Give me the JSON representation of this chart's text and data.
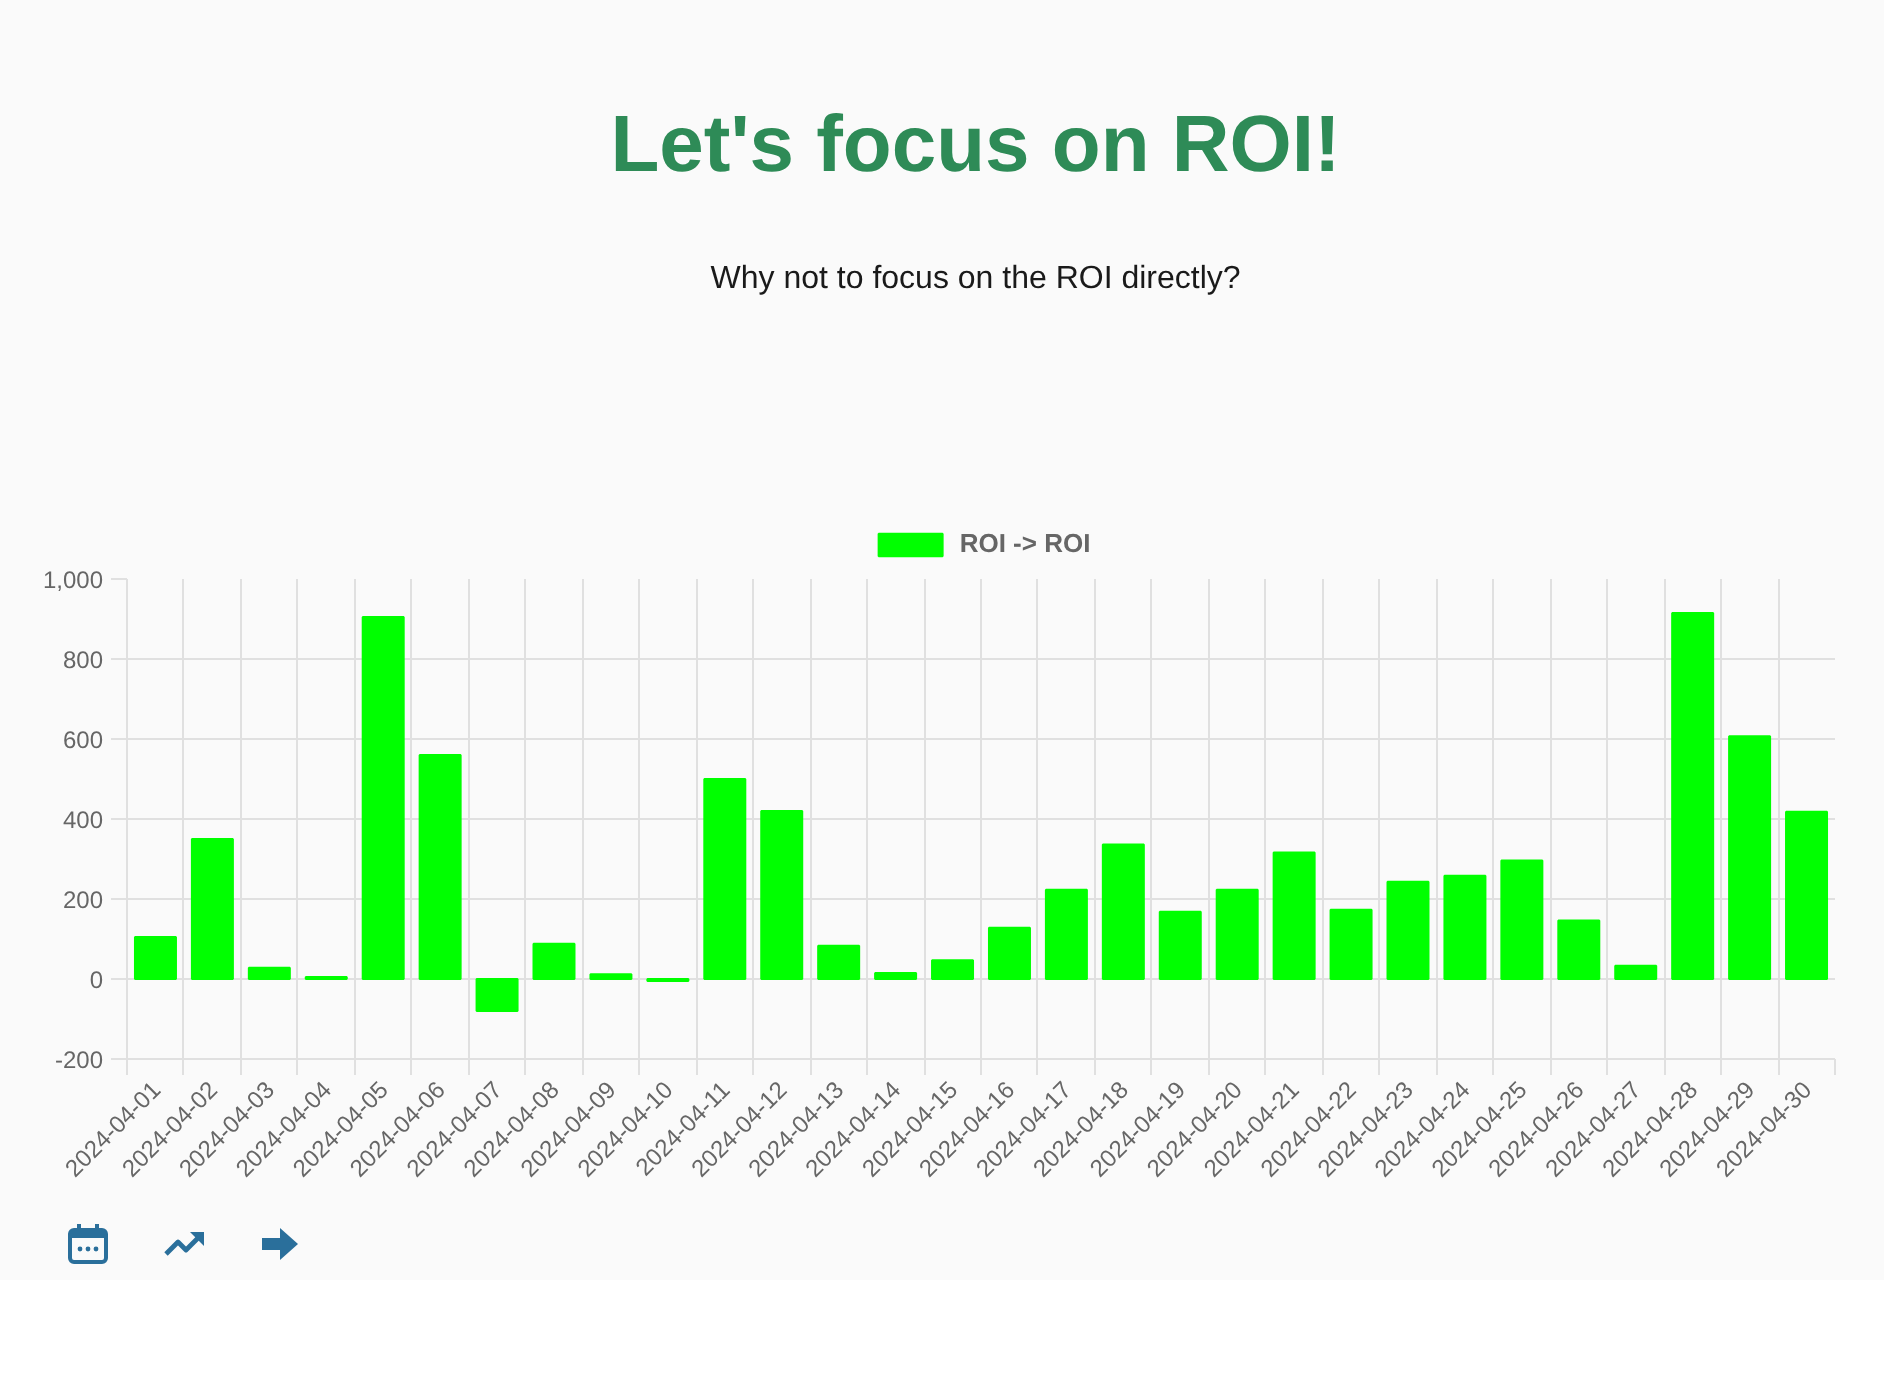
{
  "chart_data": {
    "type": "bar",
    "title": "Let's focus on ROI!",
    "subtitle": "Why not to focus on the ROI directly?",
    "categories": [
      "2024-04-01",
      "2024-04-02",
      "2024-04-03",
      "2024-04-04",
      "2024-04-05",
      "2024-04-06",
      "2024-04-07",
      "2024-04-08",
      "2024-04-09",
      "2024-04-10",
      "2024-04-11",
      "2024-04-12",
      "2024-04-13",
      "2024-04-14",
      "2024-04-15",
      "2024-04-16",
      "2024-04-17",
      "2024-04-18",
      "2024-04-19",
      "2024-04-20",
      "2024-04-21",
      "2024-04-22",
      "2024-04-23",
      "2024-04-24",
      "2024-04-25",
      "2024-04-26",
      "2024-04-27",
      "2024-04-28",
      "2024-04-29",
      "2024-04-30"
    ],
    "series": [
      {
        "name": "ROI -> ROI",
        "color": "#00ff00",
        "values": [
          105,
          350,
          28,
          5,
          905,
          560,
          -80,
          88,
          12,
          -5,
          500,
          420,
          83,
          15,
          47,
          128,
          223,
          336,
          168,
          223,
          316,
          173,
          243,
          258,
          296,
          146,
          33,
          915,
          607,
          418
        ]
      }
    ],
    "ylim": [
      -200,
      1000
    ],
    "yticks": [
      -200,
      0,
      200,
      400,
      600,
      800,
      {
        "value": 1000,
        "label": "1,000"
      }
    ],
    "grid": true,
    "legend": "top"
  }
}
